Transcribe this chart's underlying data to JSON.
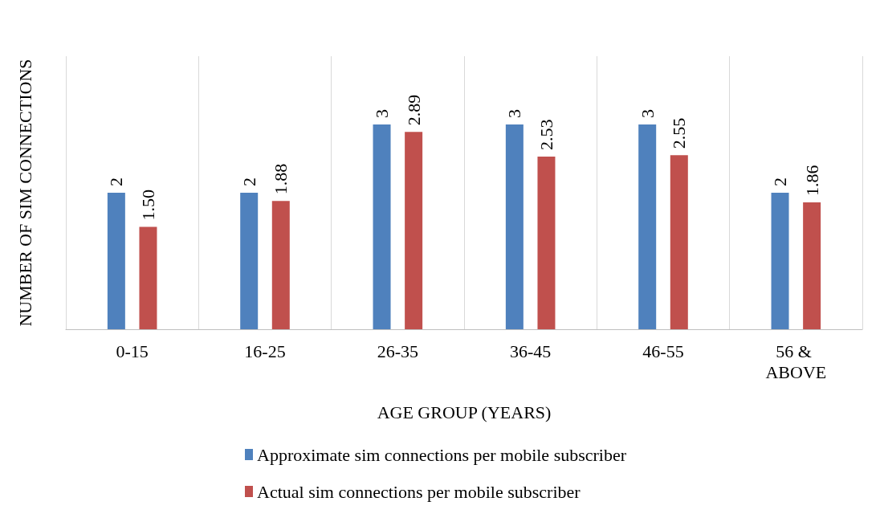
{
  "chart_data": {
    "type": "bar",
    "xlabel": "AGE GROUP (YEARS)",
    "ylabel": "NUMBER OF SIM CONNECTIONS",
    "categories": [
      "0-15",
      "16-25",
      "26-35",
      "36-45",
      "46-55",
      "56 & ABOVE"
    ],
    "series": [
      {
        "name": "Approximate sim connections per mobile subscriber",
        "color": "#4f81bd",
        "values": [
          2,
          2,
          3,
          3,
          3,
          2
        ],
        "value_labels": [
          "2",
          "2",
          "3",
          "3",
          "3",
          "2"
        ]
      },
      {
        "name": "Actual sim connections per mobile subscriber",
        "color": "#c0504d",
        "values": [
          1.5,
          1.88,
          2.89,
          2.53,
          2.55,
          1.86
        ],
        "value_labels": [
          "1.50",
          "1.88",
          "2.89",
          "2.53",
          "2.55",
          "1.86"
        ]
      }
    ],
    "ylim": [
      0,
      4
    ],
    "grid": "x",
    "legend": "bottom",
    "tick_labels": "x"
  }
}
